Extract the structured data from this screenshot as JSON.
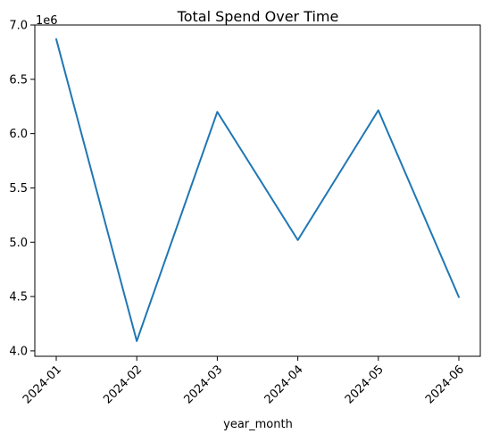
{
  "chart_data": {
    "type": "line",
    "title": "Total Spend Over Time",
    "xlabel": "year_month",
    "ylabel": "",
    "categories": [
      "2024-01",
      "2024-02",
      "2024-03",
      "2024-04",
      "2024-05",
      "2024-06"
    ],
    "series": [
      {
        "name": "Total Spend",
        "values": [
          6870000,
          4090000,
          6200000,
          5020000,
          6215000,
          4495000
        ],
        "color": "#1f77b4"
      }
    ],
    "ylim": [
      3950000,
      7000000
    ],
    "y_ticks": [
      4000000,
      4500000,
      5000000,
      5500000,
      6000000,
      6500000,
      7000000
    ],
    "y_tick_labels": [
      "4.0",
      "4.5",
      "5.0",
      "5.5",
      "6.0",
      "6.5",
      "7.0"
    ],
    "y_offset_label": "1e6",
    "grid": false,
    "legend": "none"
  }
}
